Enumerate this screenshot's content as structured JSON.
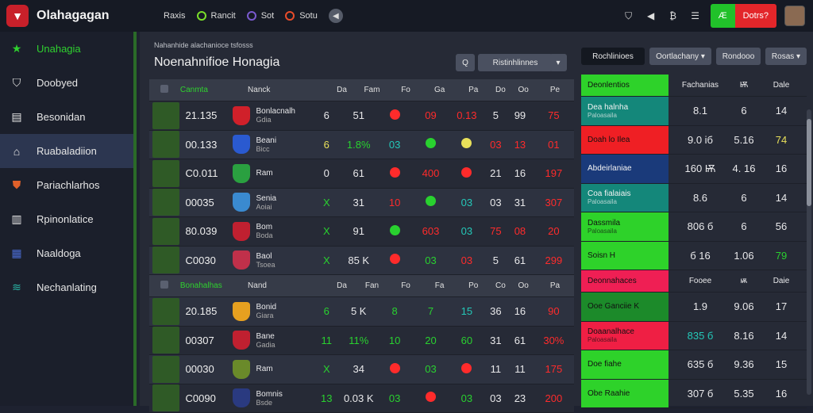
{
  "app": {
    "title": "Olahagagan"
  },
  "topnav": [
    {
      "label": "Raxis",
      "dot": ""
    },
    {
      "label": "Rancit",
      "dot": "#7adf2a"
    },
    {
      "label": "Sot",
      "dot": "#7a5acf"
    },
    {
      "label": "Sotu",
      "dot": "#e94c2a"
    }
  ],
  "top_actions": {
    "green_label": "Æ",
    "red_label": "Dotrs?"
  },
  "sidebar": {
    "items": [
      {
        "label": "Unahagia",
        "icon": "star-icon",
        "active": false
      },
      {
        "label": "Doobyed",
        "icon": "shield-icon",
        "active": false
      },
      {
        "label": "Besonidan",
        "icon": "building-icon",
        "active": false
      },
      {
        "label": "Ruabaladiion",
        "icon": "home-icon",
        "active": true
      },
      {
        "label": "Pariachlarhos",
        "icon": "crest-icon",
        "active": false
      },
      {
        "label": "Rpinonlatice",
        "icon": "chart-icon",
        "active": false
      },
      {
        "label": "Naaldoga",
        "icon": "grid-icon",
        "active": false
      },
      {
        "label": "Nechanlating",
        "icon": "wind-icon",
        "active": false
      }
    ]
  },
  "main": {
    "breadcrumb": "Nahanhide alachanioce tsfosss",
    "title": "Noenahnifioe Honagia",
    "search_label": "Q",
    "filter_label": "Ristinhlinnes",
    "filter_caret": "▾"
  },
  "table": {
    "header": {
      "a": "Canmta",
      "b": "Nanck",
      "c1": "Da",
      "c2": "Fam",
      "c3": "Fo",
      "c4": "Ga",
      "c5": "Pa",
      "c6": "Do",
      "c7": "Oo",
      "c8": "Pe"
    },
    "rows": [
      {
        "score": "21.135",
        "team": "Bonlacnalh",
        "team2": "Gdia",
        "c1": "6",
        "c2": "51",
        "c3": "●",
        "c4": "09",
        "c5": "0.13",
        "c6": "5",
        "c7": "99",
        "c8": "75",
        "badge": "#d0202a",
        "tone": [
          "w",
          "w",
          "r",
          "r",
          "r",
          "w",
          "w",
          "r"
        ]
      },
      {
        "score": "00.133",
        "team": "Beani",
        "team2": "Bicc",
        "c1": "6",
        "c2": "1.8%",
        "c3": "03",
        "c4": "●",
        "c5": "●",
        "c6": "03",
        "c7": "13",
        "c8": "01",
        "badge": "#2a5ad0",
        "tone": [
          "y",
          "g",
          "t",
          "g",
          "y",
          "r",
          "r",
          "r"
        ]
      },
      {
        "score": "C0.011",
        "team": "Ram",
        "team2": "",
        "c1": "0",
        "c2": "61",
        "c3": "●",
        "c4": "400",
        "c5": "●",
        "c6": "21",
        "c7": "16",
        "c8": "197",
        "badge": "#2aa040",
        "tone": [
          "w",
          "w",
          "r",
          "r",
          "r",
          "w",
          "w",
          "r"
        ]
      },
      {
        "score": "00035",
        "team": "Senia",
        "team2": "Aoiai",
        "c1": "X",
        "c2": "31",
        "c3": "10",
        "c4": "●",
        "c5": "03",
        "c6": "03",
        "c7": "31",
        "c8": "307",
        "badge": "#3a8ad0",
        "tone": [
          "g",
          "w",
          "r",
          "g",
          "t",
          "w",
          "w",
          "r"
        ]
      },
      {
        "score": "80.039",
        "team": "Bom",
        "team2": "Boda",
        "c1": "X",
        "c2": "91",
        "c3": "●",
        "c4": "603",
        "c5": "03",
        "c6": "75",
        "c7": "08",
        "c8": "20",
        "badge": "#c02030",
        "tone": [
          "g",
          "w",
          "g",
          "r",
          "t",
          "r",
          "r",
          "r"
        ]
      },
      {
        "score": "C0030",
        "team": "Baol",
        "team2": "Tsoea",
        "c1": "X",
        "c2": "85 K",
        "c3": "●",
        "c4": "03",
        "c5": "03",
        "c6": "5",
        "c7": "61",
        "c8": "299",
        "badge": "#c0304a",
        "tone": [
          "g",
          "w",
          "r",
          "g",
          "r",
          "w",
          "w",
          "r"
        ]
      }
    ],
    "subheader": {
      "a": "Bonahalhas",
      "b": "Nand",
      "c1": "Da",
      "c2": "Fan",
      "c3": "Fo",
      "c4": "Fa",
      "c5": "Po",
      "c6": "Co",
      "c7": "Oo",
      "c8": "Pa"
    },
    "rows2": [
      {
        "score": "20.185",
        "team": "Bonid",
        "team2": "Giara",
        "c1": "6",
        "c2": "5 K",
        "c3": "8",
        "c4": "7",
        "c5": "15",
        "c6": "36",
        "c7": "16",
        "c8": "90",
        "badge": "#e6a020",
        "tone": [
          "g",
          "w",
          "g",
          "g",
          "t",
          "w",
          "w",
          "r"
        ]
      },
      {
        "score": "00307",
        "team": "Bane",
        "team2": "Gadia",
        "c1": "11",
        "c2": "11%",
        "c3": "10",
        "c4": "20",
        "c5": "60",
        "c6": "31",
        "c7": "61",
        "c8": "30%",
        "badge": "#c02030",
        "tone": [
          "g",
          "g",
          "g",
          "g",
          "g",
          "w",
          "w",
          "r"
        ]
      },
      {
        "score": "00030",
        "team": "Ram",
        "team2": "",
        "c1": "X",
        "c2": "34",
        "c3": "●",
        "c4": "03",
        "c5": "●",
        "c6": "11",
        "c7": "11",
        "c8": "175",
        "badge": "#6a8a2a",
        "tone": [
          "g",
          "w",
          "r",
          "g",
          "r",
          "w",
          "w",
          "r"
        ]
      },
      {
        "score": "C0090",
        "team": "Bomnis",
        "team2": "Bsde",
        "c1": "13",
        "c2": "0.03 K",
        "c3": "03",
        "c4": "●",
        "c5": "03",
        "c6": "03",
        "c7": "23",
        "c8": "200",
        "badge": "#2a3a80",
        "tone": [
          "g",
          "w",
          "g",
          "r",
          "g",
          "w",
          "w",
          "r"
        ]
      }
    ]
  },
  "right_panel": {
    "buttons": [
      "Rochlinioes",
      "Oortlachany ▾",
      "Rondooo",
      "Rosas ▾"
    ],
    "header": {
      "label": "Deonlentios",
      "h1": "Fachanias",
      "h2": "Ѭ",
      "h3": "Dale"
    },
    "rows": [
      {
        "label": "Dea halnha",
        "sub": "Paloasaila",
        "color": "#14877a",
        "v1": "8.1",
        "v2": "6",
        "v3": "14",
        "tone": [
          "w",
          "w",
          "w"
        ]
      },
      {
        "label": "Doah lo Ilea",
        "sub": "",
        "color": "#ef1f24",
        "v1": "9.0 iб",
        "v2": "5.16",
        "v3": "74",
        "tone": [
          "w",
          "w",
          "y"
        ]
      },
      {
        "label": "Abdeirlaniae",
        "sub": "",
        "color": "#1a3a7a",
        "v1": "160 Ѭ",
        "v2": "4. 16",
        "v3": "16",
        "tone": [
          "w",
          "w",
          "w"
        ]
      },
      {
        "label": "Coa fialaiais",
        "sub": "Paloasaila",
        "color": "#14877a",
        "v1": "8.6",
        "v2": "6",
        "v3": "14",
        "tone": [
          "w",
          "w",
          "w"
        ]
      },
      {
        "label": "Dassmila",
        "sub": "Paloasaila",
        "color": "#2ed22a",
        "v1": "806 б",
        "v2": "6",
        "v3": "56",
        "tone": [
          "w",
          "w",
          "w"
        ]
      },
      {
        "label": "Soisn H",
        "sub": "",
        "color": "#2ed22a",
        "v1": "б 16",
        "v2": "1.06",
        "v3": "79",
        "tone": [
          "w",
          "w",
          "g"
        ]
      },
      {
        "label": "Deonnahaces",
        "sub": "",
        "color": "#ef1f54",
        "v1": "Fooee",
        "v2": "ѭ",
        "v3": "Daie",
        "tone": [
          "w",
          "w",
          "w"
        ],
        "hdr": true
      },
      {
        "label": "Ooe Ganciie K",
        "sub": "",
        "color": "#1c8a2a",
        "v1": "1.9",
        "v2": "9.06",
        "v3": "17",
        "tone": [
          "w",
          "w",
          "w"
        ]
      },
      {
        "label": "Doaanalhace",
        "sub": "Paloasaila",
        "color": "#ef1f44",
        "v1": "835 б",
        "v2": "8.16",
        "v3": "14",
        "tone": [
          "t",
          "w",
          "w"
        ]
      },
      {
        "label": "Doe fiahe",
        "sub": "",
        "color": "#2ed22a",
        "v1": "635 б",
        "v2": "9.36",
        "v3": "15",
        "tone": [
          "w",
          "w",
          "w"
        ]
      },
      {
        "label": "Obe Raahie",
        "sub": "",
        "color": "#2ed22a",
        "v1": "307 б",
        "v2": "5.35",
        "v3": "16",
        "tone": [
          "w",
          "w",
          "w"
        ]
      }
    ]
  },
  "colors": {
    "green": "#29d12f",
    "red": "#ff2b2b",
    "teal": "#24c8b8",
    "yellow": "#e8e05a"
  }
}
